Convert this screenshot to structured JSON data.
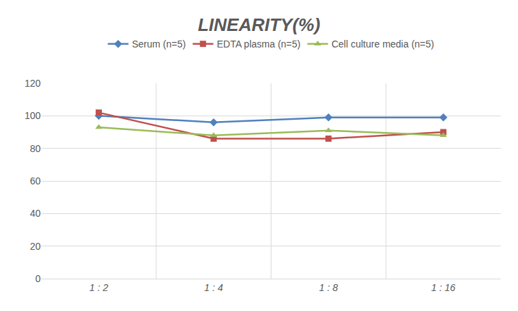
{
  "chart_data": {
    "type": "line",
    "title": "LINEARITY(%)",
    "categories": [
      "1 : 2",
      "1 : 4",
      "1 : 8",
      "1 : 16"
    ],
    "series": [
      {
        "name": "Serum (n=5)",
        "color": "#4F81BD",
        "marker": "diamond",
        "values": [
          100,
          96,
          99,
          99
        ]
      },
      {
        "name": "EDTA plasma (n=5)",
        "color": "#C0504D",
        "marker": "square",
        "values": [
          102,
          86,
          86,
          90
        ]
      },
      {
        "name": "Cell culture media (n=5)",
        "color": "#9BBB59",
        "marker": "triangle",
        "values": [
          93,
          88,
          91,
          88
        ]
      }
    ],
    "ylim": [
      0,
      120
    ],
    "yticks": [
      0,
      20,
      40,
      60,
      80,
      100,
      120
    ],
    "grid": true,
    "legend": "top"
  }
}
